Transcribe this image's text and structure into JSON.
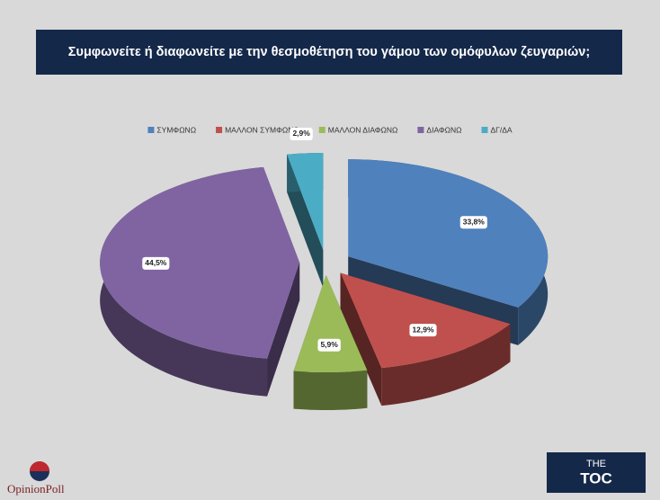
{
  "chart_data": {
    "type": "pie3d",
    "title": "Συμφωνείτε ή διαφωνείτε με την θεσμοθέτηση του γάμου των ομόφυλων ζευγαριών;",
    "categories": [
      "ΣΥΜΦΩΝΩ",
      "ΜΑΛΛΟΝ ΣΥΜΦΩΝΩ",
      "ΜΑΛΛΟΝ ΔΙΑΦΩΝΩ",
      "ΔΙΑΦΩΝΩ",
      "ΔΓ/ΔΑ"
    ],
    "values": [
      33.8,
      12.9,
      5.9,
      44.5,
      2.9
    ],
    "value_labels": [
      "33,8%",
      "12,9%",
      "5,9%",
      "44,5%",
      "2,9%"
    ],
    "colors": [
      "#4f81bd",
      "#c0504d",
      "#9bbb59",
      "#8064a2",
      "#4bacc6"
    ],
    "legend": "top"
  },
  "branding": {
    "left": "OpinionPoll",
    "right_top": "THE",
    "right_main": "TOC"
  }
}
